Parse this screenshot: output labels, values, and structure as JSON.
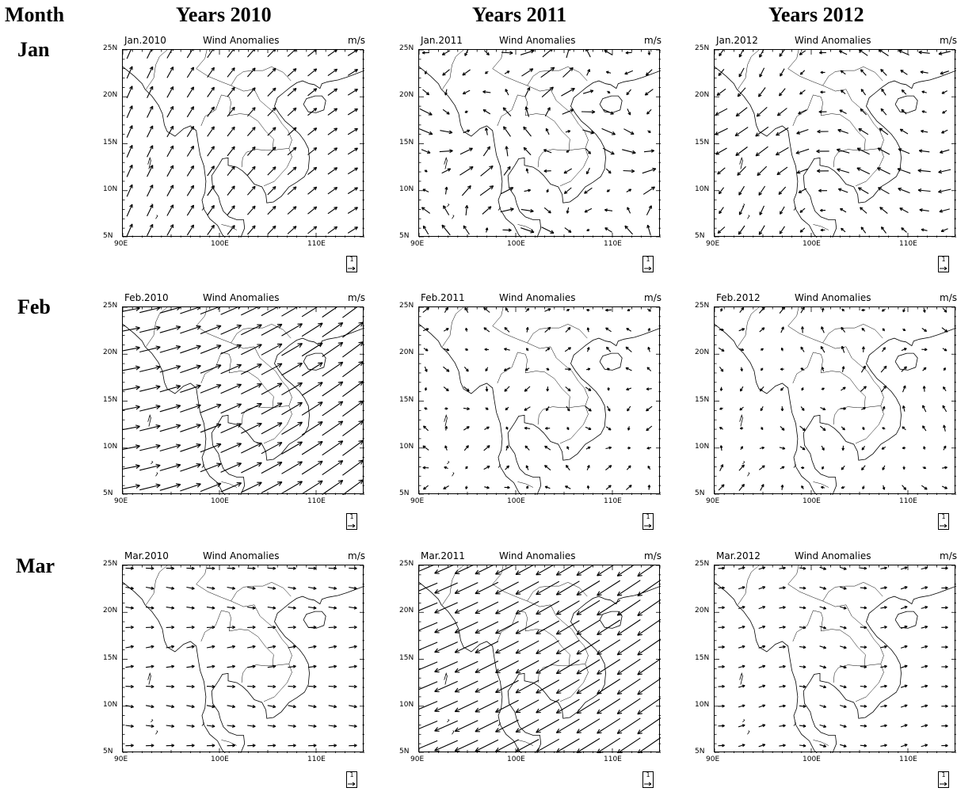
{
  "header": {
    "month_col": "Month",
    "years": [
      "Years 2010",
      "Years 2011",
      "Years 2012"
    ],
    "months": [
      "Jan",
      "Feb",
      "Mar"
    ]
  },
  "panel_text": {
    "center_title": "Wind Anomalies",
    "units": "m/s",
    "lat_labels": [
      "25N",
      "20N",
      "15N",
      "10N",
      "5N"
    ],
    "lon_labels": [
      "90E",
      "100E",
      "110E"
    ],
    "ref_vector": "1"
  },
  "panels": [
    {
      "label": "Jan.2010",
      "pattern": "ne_rotating",
      "strength": 0.9
    },
    {
      "label": "Jan.2011",
      "pattern": "mixed_ne",
      "strength": 0.95
    },
    {
      "label": "Jan.2012",
      "pattern": "mixed_nw",
      "strength": 1.0
    },
    {
      "label": "Feb.2010",
      "pattern": "strong_ene",
      "strength": 1.7
    },
    {
      "label": "Feb.2011",
      "pattern": "weak_mixed",
      "strength": 0.7
    },
    {
      "label": "Feb.2012",
      "pattern": "weak_mixed2",
      "strength": 0.65
    },
    {
      "label": "Mar.2010",
      "pattern": "east_weak",
      "strength": 0.7
    },
    {
      "label": "Mar.2011",
      "pattern": "strong_wsw",
      "strength": 1.9
    },
    {
      "label": "Mar.2012",
      "pattern": "weak_east",
      "strength": 0.6
    }
  ],
  "chart_data": {
    "type": "vector-map",
    "x_range": [
      90,
      115
    ],
    "y_range": [
      5,
      25
    ],
    "vector_units": "m/s",
    "reference_vector_magnitude": 1
  }
}
